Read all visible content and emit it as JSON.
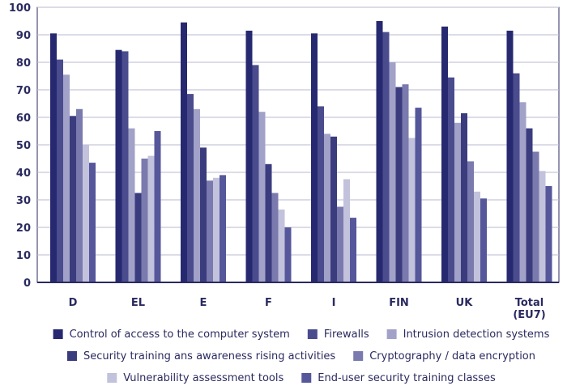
{
  "chart_data": {
    "type": "bar",
    "categories": [
      "D",
      "EL",
      "E",
      "F",
      "I",
      "FIN",
      "UK",
      "Total (EU7)"
    ],
    "ylim": [
      0,
      100
    ],
    "yticks": [
      0,
      10,
      20,
      30,
      40,
      50,
      60,
      70,
      80,
      90,
      100
    ],
    "grid": true,
    "legend_position": "bottom",
    "series": [
      {
        "name": "Control of access to the computer system",
        "color": "#272970",
        "values": [
          90.5,
          84.5,
          94.5,
          91.5,
          90.5,
          95,
          93,
          91.5
        ]
      },
      {
        "name": "Firewalls",
        "color": "#4a4c8e",
        "values": [
          81,
          84,
          68.5,
          79,
          64,
          91,
          74.5,
          76
        ]
      },
      {
        "name": "Intrusion detection systems",
        "color": "#a2a2c8",
        "values": [
          75.5,
          56,
          63,
          62,
          54,
          80,
          58,
          65.5
        ]
      },
      {
        "name": "Security training ans awareness rising activities",
        "color": "#3a3c7e",
        "values": [
          60.5,
          32.5,
          49,
          43,
          53,
          71,
          61.5,
          56
        ]
      },
      {
        "name": "Cryptography / data encryption",
        "color": "#7a7aae",
        "values": [
          63,
          45,
          37,
          32.5,
          27.5,
          72,
          44,
          47.5
        ]
      },
      {
        "name": "Vulnerability assessment tools",
        "color": "#c2c2dc",
        "values": [
          50,
          46,
          38,
          26.5,
          37.5,
          52.5,
          33,
          40.5
        ]
      },
      {
        "name": "End-user security training classes",
        "color": "#55579a",
        "values": [
          43.5,
          55,
          39,
          20,
          23.5,
          63.5,
          30.5,
          35
        ]
      }
    ]
  }
}
